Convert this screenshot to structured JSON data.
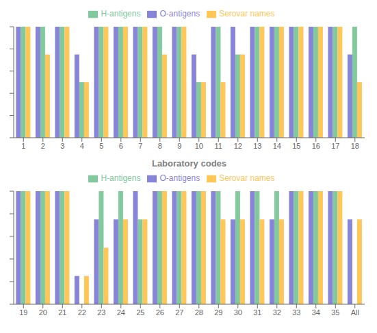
{
  "chart_data": [
    {
      "type": "bar",
      "xlabel": "Laboratory codes",
      "categories": [
        "1",
        "2",
        "3",
        "4",
        "5",
        "6",
        "7",
        "8",
        "9",
        "10",
        "11",
        "12",
        "13",
        "14",
        "15",
        "16",
        "17",
        "18"
      ],
      "series": [
        {
          "name": "O-antigens",
          "color": "#8884d8",
          "values": [
            100,
            100,
            100,
            75,
            100,
            100,
            100,
            100,
            100,
            75,
            100,
            100,
            100,
            100,
            100,
            100,
            100,
            75
          ]
        },
        {
          "name": "H-antigens",
          "color": "#82ca9d",
          "values": [
            100,
            100,
            100,
            50,
            100,
            100,
            100,
            100,
            100,
            50,
            100,
            75,
            100,
            100,
            100,
            100,
            100,
            100
          ]
        },
        {
          "name": "Serovar names",
          "color": "#ffc658",
          "values": [
            100,
            75,
            100,
            50,
            100,
            100,
            100,
            75,
            100,
            50,
            50,
            75,
            100,
            100,
            100,
            100,
            100,
            50
          ]
        }
      ],
      "ylim": [
        0,
        100
      ],
      "yticks": [
        0,
        20,
        40,
        60,
        80,
        100
      ],
      "tick_labels": "x",
      "grid": false,
      "legend": "top"
    },
    {
      "type": "bar",
      "categories": [
        "19",
        "20",
        "21",
        "22",
        "23",
        "24",
        "25",
        "26",
        "27",
        "28",
        "29",
        "30",
        "31",
        "32",
        "33",
        "34",
        "35",
        "All"
      ],
      "series": [
        {
          "name": "O-antigens",
          "color": "#8884d8",
          "values": [
            100,
            100,
            100,
            25,
            75,
            75,
            100,
            100,
            100,
            100,
            100,
            75,
            100,
            75,
            100,
            100,
            100,
            75
          ]
        },
        {
          "name": "H-antigens",
          "color": "#82ca9d",
          "values": [
            100,
            100,
            100,
            0,
            100,
            100,
            75,
            100,
            100,
            100,
            100,
            100,
            100,
            100,
            100,
            100,
            100,
            0
          ]
        },
        {
          "name": "Serovar names",
          "color": "#ffc658",
          "values": [
            100,
            100,
            100,
            25,
            50,
            75,
            75,
            100,
            100,
            100,
            75,
            75,
            75,
            75,
            100,
            100,
            100,
            75
          ]
        }
      ],
      "ylim": [
        0,
        100
      ],
      "yticks": [
        0,
        20,
        40,
        60,
        80,
        100
      ],
      "tick_labels": "x",
      "grid": false,
      "legend": "top"
    }
  ]
}
